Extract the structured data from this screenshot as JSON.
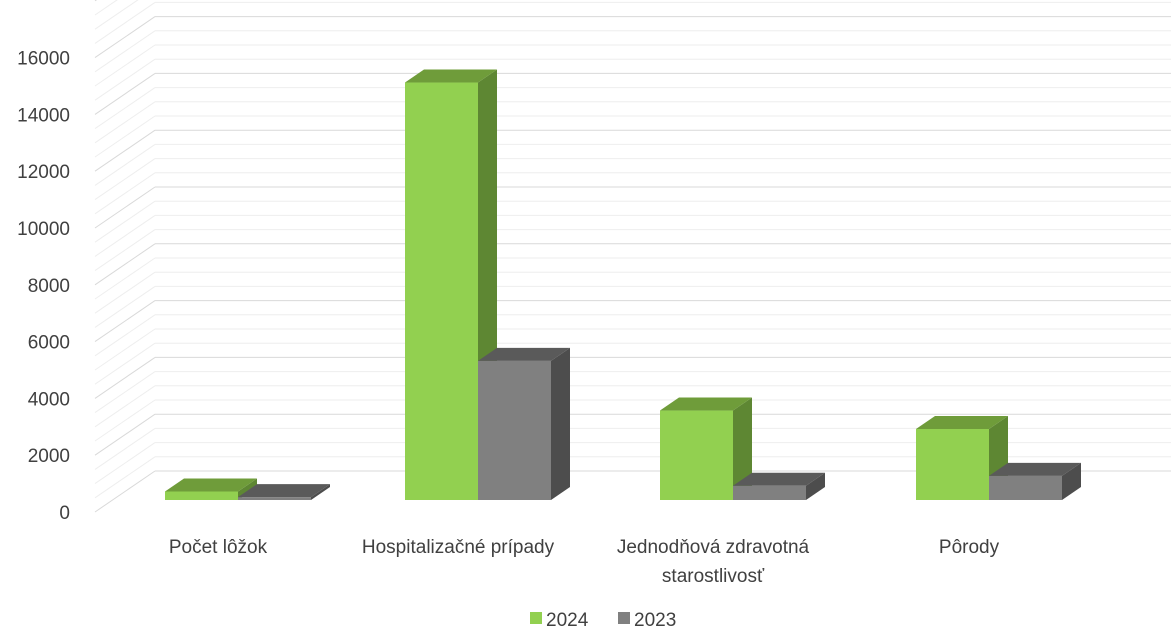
{
  "chart_data": {
    "type": "bar",
    "style": "3d-clustered-column",
    "categories": [
      [
        "Počet lôžok"
      ],
      [
        "Hospitalizačné prípady"
      ],
      [
        "Jednodňová zdravotná",
        "starostlivosť"
      ],
      [
        "Pôrody"
      ]
    ],
    "series": [
      {
        "name": "2024",
        "values": [
          300,
          14700,
          3150,
          2500
        ],
        "color": "#92d050",
        "side_color": "#5e8733",
        "top_color": "#6f9c3a"
      },
      {
        "name": "2023",
        "values": [
          100,
          4900,
          500,
          850
        ],
        "color": "#808080",
        "side_color": "#4d4d4d",
        "top_color": "#5a5a5a"
      }
    ],
    "y_ticks": [
      "0",
      "2000",
      "4000",
      "6000",
      "8000",
      "10000",
      "12000",
      "14000",
      "16000"
    ],
    "ylim": [
      0,
      16000
    ],
    "grid": true,
    "legend_position": "bottom"
  }
}
